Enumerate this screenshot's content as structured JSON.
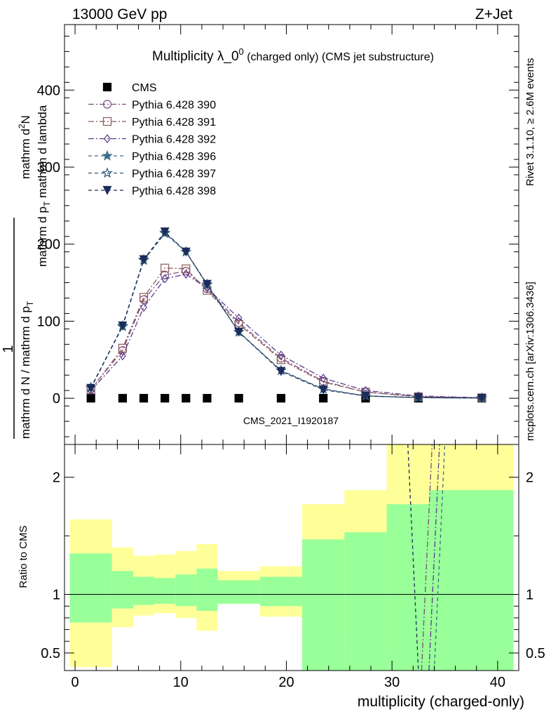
{
  "header": {
    "left": "13000 GeV pp",
    "right": "Z+Jet"
  },
  "side_labels": {
    "rivet": "Rivet 3.1.10, ≥ 2.6M events",
    "mcplots": "mcplots.cern.ch [arXiv:1306.3436]"
  },
  "watermark": "CMS_2021_I1920187",
  "chart_data": [
    {
      "type": "line",
      "title_main": "Multiplicity λ_0",
      "title_sup": "0",
      "title_sub": " (charged only) (CMS jet substructure)",
      "ylabel": {
        "frac_left": "1",
        "den_left": "mathrm d N / mathrm d p",
        "den_sub": "T",
        "num_right": "mathrm d",
        "num_sup": "2",
        "num_right2": "N",
        "den_right": "mathrm d p",
        "den_right_sub": "T",
        "den_right2": " mathrm d lambda"
      },
      "xlabel": "multiplicity (charged-only)",
      "xlim": [
        -1,
        42
      ],
      "ylim": [
        -60,
        485
      ],
      "yticks": [
        0,
        100,
        200,
        300,
        400
      ],
      "xticks": [
        0,
        10,
        20,
        30,
        40
      ],
      "x": [
        1.5,
        4.5,
        6.5,
        8.5,
        10.5,
        12.5,
        15.5,
        19.5,
        23.5,
        27.5,
        32.5,
        38.5
      ],
      "series": [
        {
          "name": "CMS",
          "color": "#000000",
          "marker": "square-filled",
          "dash": "",
          "values": [
            0,
            0,
            0,
            0,
            0,
            0,
            0,
            0,
            0,
            0,
            0,
            0
          ]
        },
        {
          "name": "Pythia 6.428 390",
          "color": "#7b4f7b",
          "marker": "circle-open",
          "dash": "8,3,2,3",
          "values": [
            12,
            62,
            128,
            160,
            165,
            142,
            98,
            52,
            22,
            8,
            2,
            0.5
          ]
        },
        {
          "name": "Pythia 6.428 391",
          "color": "#8b5a5a",
          "marker": "square-open",
          "dash": "8,3,2,3",
          "values": [
            11,
            65,
            131,
            169,
            168,
            140,
            96,
            50,
            21,
            8,
            2,
            0.5
          ]
        },
        {
          "name": "Pythia 6.428 392",
          "color": "#5a3a8b",
          "marker": "diamond-open",
          "dash": "8,3,2,3",
          "values": [
            10,
            55,
            118,
            155,
            161,
            143,
            104,
            56,
            26,
            10,
            3,
            0.6
          ]
        },
        {
          "name": "Pythia 6.428 396",
          "color": "#3b6e8b",
          "marker": "star-filled",
          "dash": "5,4",
          "values": [
            14,
            94,
            180,
            215,
            190,
            148,
            86,
            36,
            12,
            3,
            0.8,
            0.2
          ]
        },
        {
          "name": "Pythia 6.428 397",
          "color": "#2f5a78",
          "marker": "star-open",
          "dash": "5,4",
          "values": [
            14,
            93,
            179,
            214,
            190,
            147,
            86,
            36,
            12,
            3,
            0.8,
            0.2
          ]
        },
        {
          "name": "Pythia 6.428 398",
          "color": "#1c2b5a",
          "marker": "triangle-down-filled",
          "dash": "5,4",
          "values": [
            13,
            94,
            180,
            216,
            190,
            148,
            86,
            35,
            11,
            3,
            0.8,
            0.2
          ]
        }
      ]
    },
    {
      "type": "area",
      "ylabel": "Ratio to CMS",
      "ylim": [
        0.35,
        2.28
      ],
      "yticks": [
        0.5,
        1,
        2
      ],
      "bin_edges": [
        -0.5,
        3.5,
        5.5,
        7.5,
        9.5,
        11.5,
        13.5,
        17.5,
        21.5,
        25.5,
        29.5,
        33.5,
        41.5
      ],
      "band_yellow": {
        "lower": [
          0.38,
          0.72,
          0.82,
          0.84,
          0.8,
          0.69,
          1.0,
          0.81,
          0.68,
          0.57,
          0.35,
          0.35
        ],
        "upper": [
          1.64,
          1.4,
          1.33,
          1.34,
          1.37,
          1.43,
          1.2,
          1.24,
          1.77,
          1.89,
          2.28,
          2.28
        ]
      },
      "band_green": {
        "lower": [
          0.76,
          0.88,
          0.91,
          0.92,
          0.9,
          0.86,
          0.92,
          0.9,
          0.35,
          0.35,
          0.35,
          0.35
        ],
        "upper": [
          1.35,
          1.2,
          1.15,
          1.14,
          1.17,
          1.22,
          1.12,
          1.15,
          1.47,
          1.53,
          1.77,
          1.89
        ]
      },
      "ratio_lines": [
        {
          "x": [
            31.5,
            32.5
          ],
          "y": [
            2.28,
            0.35
          ],
          "color": "#1c2b5a",
          "dash": "5,4"
        },
        {
          "x": [
            32.8,
            33.8
          ],
          "y": [
            0.35,
            2.28
          ],
          "color": "#7b4f7b",
          "dash": "8,3,2,3"
        },
        {
          "x": [
            33.5,
            34.5
          ],
          "y": [
            0.35,
            2.28
          ],
          "color": "#5a3a8b",
          "dash": "8,3,2,3"
        },
        {
          "x": [
            34.0,
            35.0
          ],
          "y": [
            0.35,
            2.28
          ],
          "color": "#3b6e8b",
          "dash": "5,4"
        }
      ]
    }
  ]
}
